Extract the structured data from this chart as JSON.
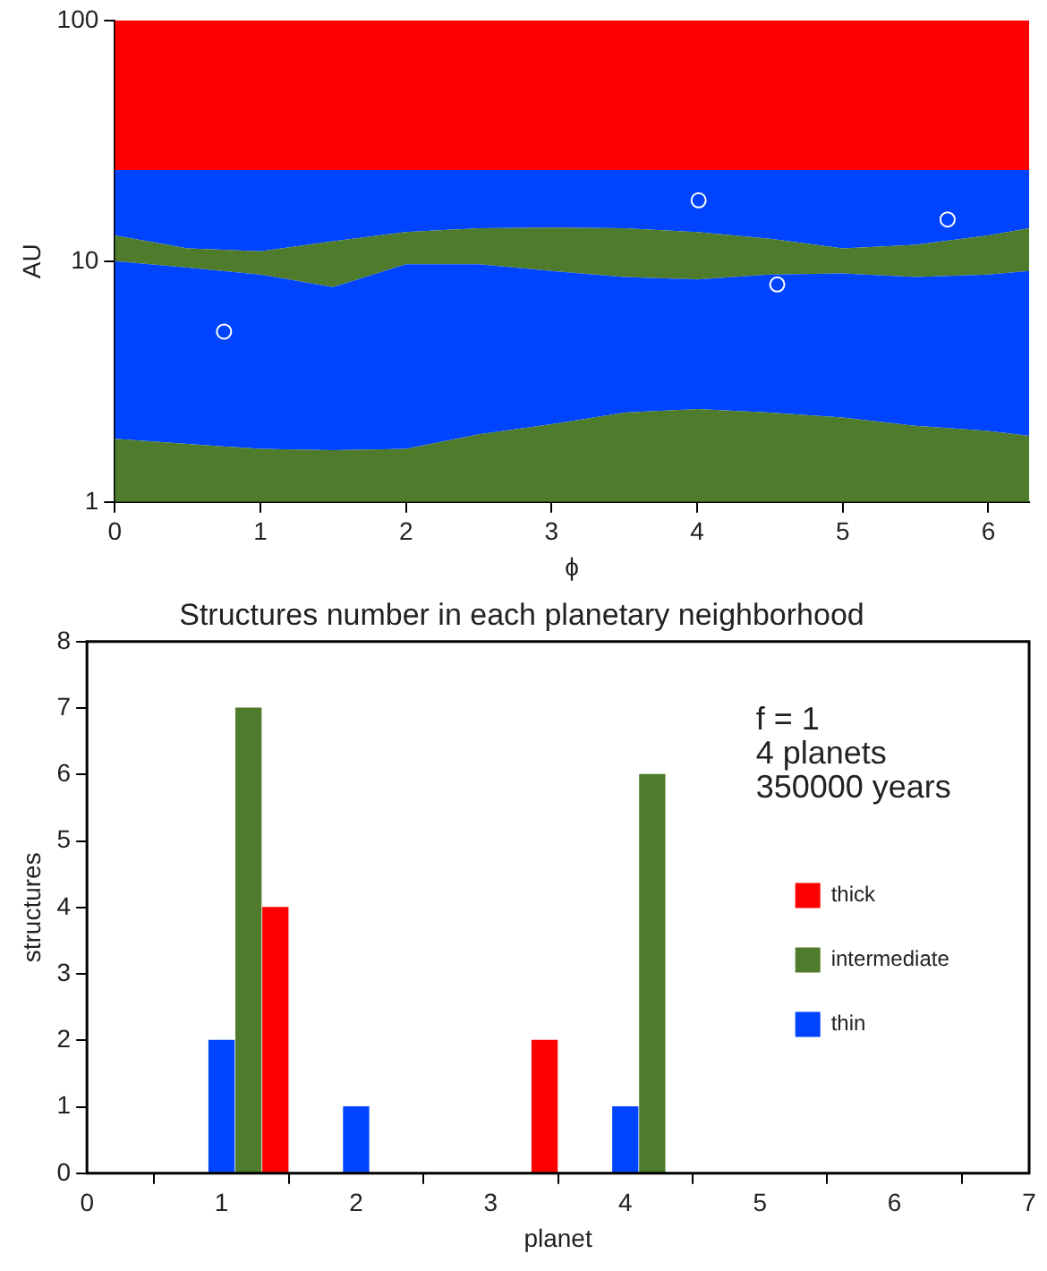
{
  "chart_data": [
    {
      "type": "area",
      "xlabel": "ϕ",
      "ylabel": "AU",
      "stacked": true,
      "log": "y",
      "grid": false,
      "xlim": [
        0,
        6.28
      ],
      "xticks": [
        0,
        1,
        2,
        3,
        4,
        5,
        6
      ],
      "ylim": [
        1,
        100
      ],
      "yticks": [
        1,
        10,
        100
      ],
      "x": [
        0,
        0.5,
        1,
        1.5,
        2,
        2.5,
        3,
        3.5,
        4,
        4.5,
        5,
        5.5,
        6,
        6.28
      ],
      "series": [
        {
          "color": "#4e7c2c",
          "values": [
            1.83,
            1.74,
            1.66,
            1.64,
            1.66,
            1.91,
            2.1,
            2.35,
            2.43,
            2.35,
            2.24,
            2.07,
            1.97,
            1.88
          ]
        },
        {
          "color": "#0044ff",
          "values": [
            8.17,
            7.66,
            7.14,
            6.16,
            8.04,
            7.79,
            7.0,
            6.25,
            5.97,
            6.45,
            6.66,
            6.53,
            6.83,
            7.22
          ]
        },
        {
          "color": "#4e7c2c",
          "values": [
            2.8,
            1.9,
            2.2,
            4.3,
            3.5,
            4.0,
            4.7,
            5.1,
            4.8,
            3.6,
            2.4,
            3.1,
            4.0,
            4.6
          ]
        },
        {
          "color": "#0044ff",
          "values": [
            11.1,
            12.6,
            12.9,
            11.8,
            10.7,
            10.2,
            10.1,
            10.2,
            10.7,
            11.5,
            12.6,
            12.2,
            11.1,
            10.2
          ]
        },
        {
          "color": "#ff0000",
          "values": [
            76.1,
            76.1,
            76.1,
            76.1,
            76.1,
            76.1,
            76.1,
            76.1,
            76.1,
            76.1,
            76.1,
            76.1,
            76.1,
            76.1
          ]
        },
        {
          "type": "scatter",
          "color": "#ffffff",
          "marker": "circle",
          "x": [
            0.75,
            4.01,
            4.55,
            5.72
          ],
          "values": [
            5.1,
            17.9,
            8.0,
            14.9
          ]
        }
      ]
    },
    {
      "type": "bar",
      "title": "Structures number in each planetary neighborhood",
      "xlabel": "planet",
      "ylabel": "structures",
      "grid": false,
      "xlim": [
        0,
        7
      ],
      "xticks": [
        0,
        1,
        2,
        3,
        4,
        5,
        6,
        7
      ],
      "ylim": [
        0,
        8
      ],
      "yticks": [
        0,
        1,
        2,
        3,
        4,
        5,
        6,
        7,
        8
      ],
      "legend": "right",
      "annotations": [
        "f = 1",
        "4 planets",
        "350000 years"
      ],
      "series": [
        {
          "name": "thick",
          "color": "#ff0000",
          "x": [
            1.4,
            3.4
          ],
          "values": [
            4,
            2
          ]
        },
        {
          "name": "intermediate",
          "color": "#4e7c2c",
          "x": [
            1.2,
            4.2
          ],
          "values": [
            7,
            6
          ]
        },
        {
          "name": "thin",
          "color": "#0044ff",
          "x": [
            1,
            2,
            4
          ],
          "values": [
            2,
            1,
            1
          ]
        }
      ]
    }
  ]
}
